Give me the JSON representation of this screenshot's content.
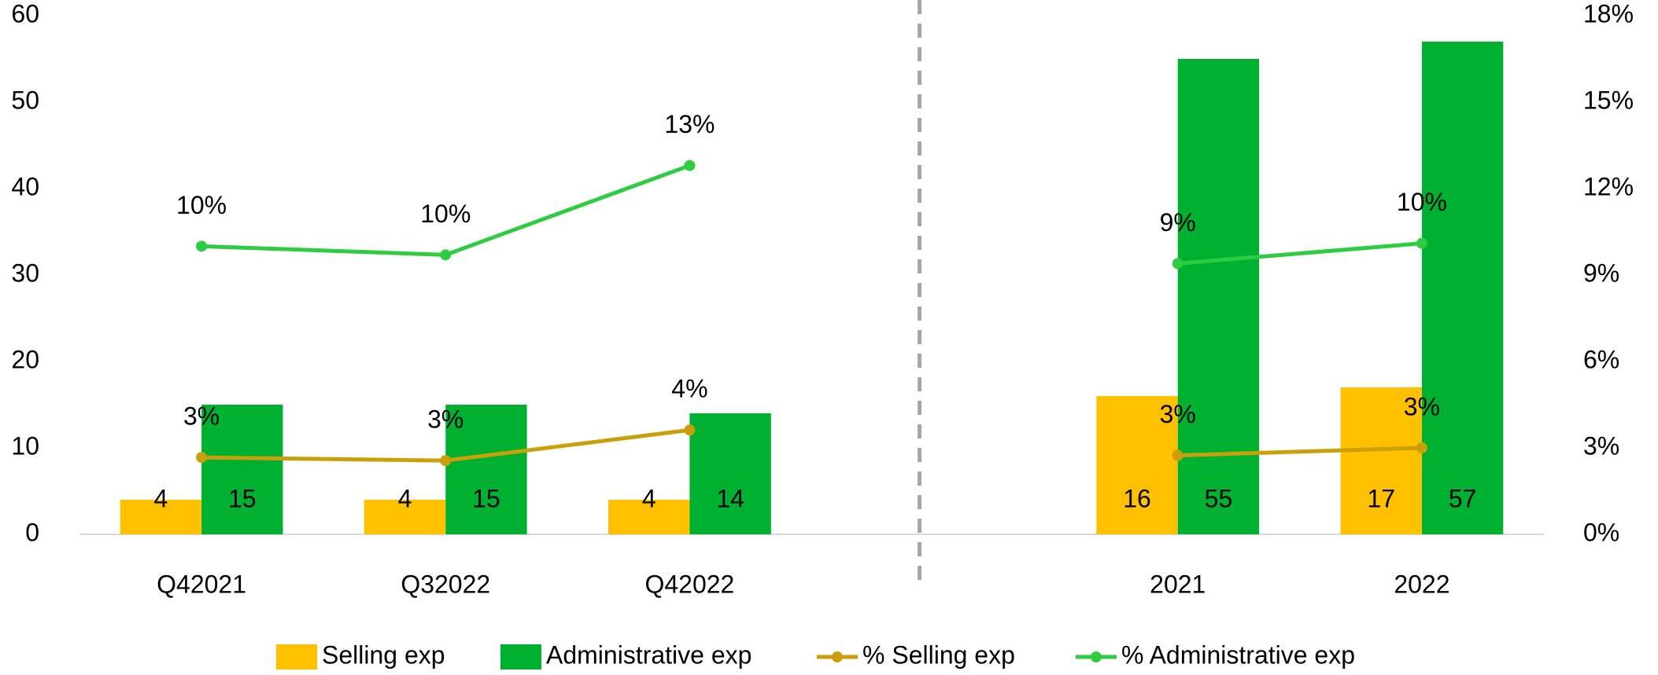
{
  "chart_data": {
    "type": "bar",
    "categories": [
      "Q42021",
      "Q32022",
      "Q42022",
      null,
      "2021",
      "2022"
    ],
    "series": [
      {
        "name": "Selling exp",
        "type": "bar",
        "color": "#FFC000",
        "values": [
          4,
          4,
          4,
          null,
          16,
          17
        ]
      },
      {
        "name": "Administrative exp",
        "type": "bar",
        "color": "#00B030",
        "values": [
          15,
          15,
          14,
          null,
          55,
          57
        ]
      },
      {
        "name": "% Selling exp",
        "type": "line",
        "axis": "y2",
        "color": "#C9A00A",
        "values": [
          2.67,
          2.56,
          3.62,
          null,
          2.74,
          3.0
        ],
        "value_labels": [
          "3%",
          "3%",
          "4%",
          null,
          "3%",
          "3%"
        ]
      },
      {
        "name": "% Administrative exp",
        "type": "line",
        "axis": "y2",
        "color": "#2ECC40",
        "values": [
          10.0,
          9.7,
          12.8,
          null,
          9.4,
          10.1
        ],
        "value_labels": [
          "10%",
          "10%",
          "13%",
          null,
          "9%",
          "10%"
        ]
      }
    ],
    "ylim": [
      0,
      60
    ],
    "yticks": [
      0,
      10,
      20,
      30,
      40,
      50,
      60
    ],
    "y2lim": [
      0,
      18
    ],
    "y2ticks": [
      {
        "value": 0,
        "label": "0%"
      },
      {
        "value": 3,
        "label": "3%"
      },
      {
        "value": 6,
        "label": "6%"
      },
      {
        "value": 9,
        "label": "9%"
      },
      {
        "value": 12,
        "label": "12%"
      },
      {
        "value": 15,
        "label": "15%"
      },
      {
        "value": 18,
        "label": "18%"
      }
    ],
    "legend": "bottom"
  }
}
